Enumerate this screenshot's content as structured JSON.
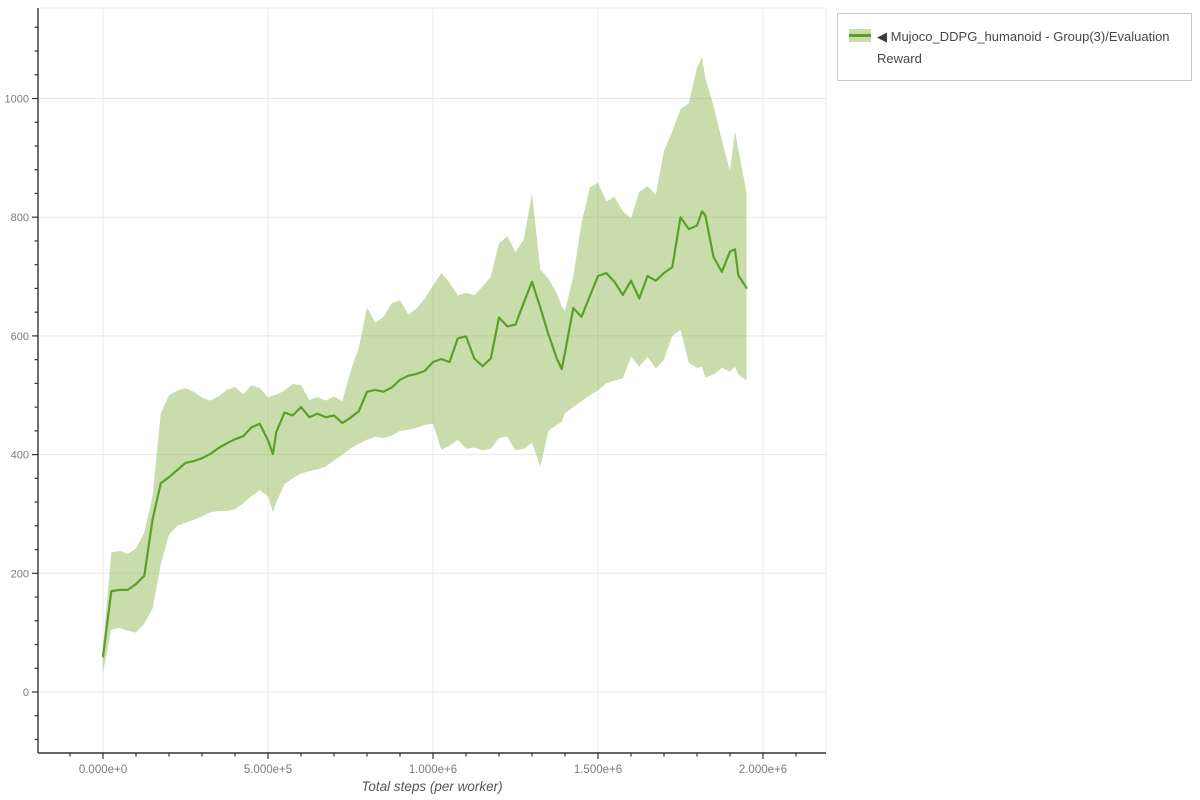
{
  "legend": {
    "toggle_icon": "◀",
    "label": "Mujoco_DDPG_humanoid - Group(3)/Evaluation Reward"
  },
  "chart_data": {
    "type": "line",
    "title": "",
    "xlabel": "Total steps (per worker)",
    "ylabel": "",
    "grid": true,
    "legend_position": "top-right",
    "xlim": [
      -200000,
      2190000
    ],
    "ylim": [
      -103,
      1159
    ],
    "x_axis": {
      "major_ticks": [
        0,
        500000,
        1000000,
        1500000,
        2000000
      ],
      "major_labels": [
        "0.000e+0",
        "5.000e+5",
        "1.000e+6",
        "1.500e+6",
        "2.000e+6"
      ],
      "minor_step": 100000
    },
    "y_axis": {
      "major_ticks": [
        0,
        200,
        400,
        600,
        800,
        1000
      ],
      "major_labels": [
        "0",
        "200",
        "400",
        "600",
        "800",
        "1000"
      ],
      "minor_step": 40
    },
    "colors": {
      "line": "#5aa028",
      "band_fill": "rgba(125,175,55,0.42)",
      "grid": "#e8e8e8",
      "axis": "#333333",
      "tick_text": "#7b7b7b"
    },
    "series": [
      {
        "name": "Mujoco_DDPG_humanoid - Group(3)/Evaluation Reward",
        "x": [
          0,
          25000,
          50000,
          75000,
          100000,
          125000,
          150000,
          175000,
          200000,
          225000,
          250000,
          275000,
          300000,
          325000,
          350000,
          375000,
          400000,
          425000,
          450000,
          475000,
          500000,
          515000,
          525000,
          550000,
          575000,
          600000,
          625000,
          650000,
          675000,
          700000,
          725000,
          750000,
          775000,
          800000,
          825000,
          850000,
          875000,
          900000,
          925000,
          950000,
          975000,
          1000000,
          1025000,
          1050000,
          1075000,
          1100000,
          1125000,
          1150000,
          1175000,
          1200000,
          1225000,
          1250000,
          1275000,
          1300000,
          1325000,
          1350000,
          1375000,
          1390000,
          1400000,
          1425000,
          1450000,
          1475000,
          1500000,
          1525000,
          1550000,
          1575000,
          1600000,
          1625000,
          1650000,
          1675000,
          1700000,
          1725000,
          1750000,
          1775000,
          1800000,
          1815000,
          1825000,
          1850000,
          1875000,
          1900000,
          1915000,
          1925000,
          1950000
        ],
        "mean": [
          60,
          170,
          172,
          172,
          182,
          196,
          290,
          352,
          362,
          374,
          386,
          389,
          394,
          401,
          411,
          419,
          426,
          431,
          446,
          452,
          424,
          401,
          438,
          471,
          466,
          480,
          463,
          469,
          463,
          466,
          453,
          462,
          473,
          506,
          509,
          506,
          513,
          526,
          533,
          536,
          541,
          556,
          561,
          556,
          596,
          599,
          562,
          549,
          562,
          631,
          616,
          619,
          656,
          691,
          648,
          602,
          562,
          544,
          572,
          647,
          632,
          667,
          701,
          706,
          691,
          669,
          693,
          663,
          701,
          693,
          706,
          716,
          800,
          780,
          786,
          810,
          803,
          733,
          708,
          742,
          746,
          702,
          681
        ],
        "band_lower": [
          33,
          105,
          108,
          103,
          100,
          115,
          140,
          215,
          265,
          280,
          285,
          290,
          296,
          303,
          305,
          305,
          308,
          318,
          330,
          340,
          330,
          303,
          320,
          350,
          360,
          368,
          372,
          375,
          380,
          390,
          400,
          410,
          418,
          425,
          430,
          428,
          432,
          440,
          442,
          445,
          450,
          452,
          408,
          415,
          425,
          410,
          412,
          407,
          410,
          428,
          430,
          407,
          410,
          420,
          380,
          440,
          450,
          455,
          470,
          480,
          490,
          500,
          508,
          520,
          525,
          528,
          565,
          548,
          565,
          545,
          560,
          600,
          610,
          555,
          546,
          548,
          530,
          535,
          546,
          540,
          548,
          535,
          525
        ],
        "band_upper": [
          75,
          235,
          238,
          233,
          242,
          268,
          330,
          470,
          500,
          508,
          512,
          506,
          496,
          491,
          498,
          509,
          514,
          502,
          517,
          512,
          496,
          500,
          501,
          508,
          519,
          517,
          492,
          497,
          491,
          498,
          490,
          540,
          580,
          648,
          622,
          632,
          655,
          660,
          636,
          646,
          663,
          685,
          706,
          690,
          668,
          673,
          668,
          683,
          700,
          756,
          768,
          741,
          763,
          840,
          712,
          696,
          672,
          650,
          642,
          700,
          790,
          850,
          858,
          827,
          834,
          810,
          798,
          843,
          852,
          838,
          912,
          945,
          982,
          992,
          1052,
          1070,
          1035,
          988,
          930,
          878,
          945,
          915,
          842
        ]
      }
    ]
  }
}
